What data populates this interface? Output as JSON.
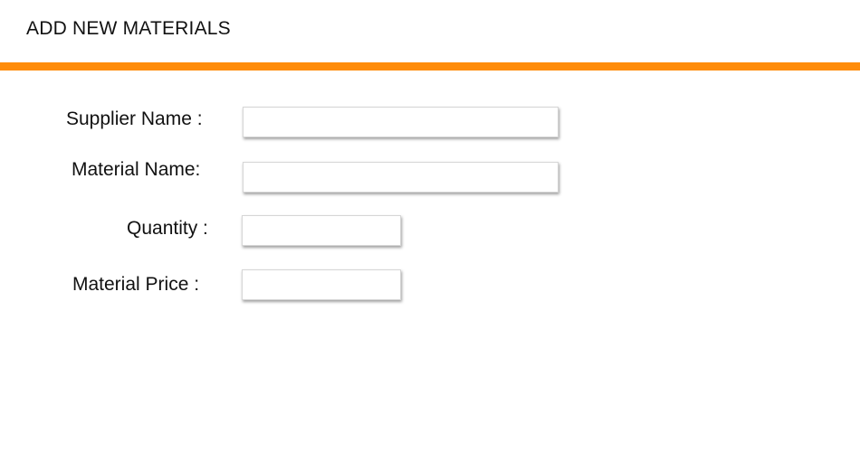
{
  "header": {
    "title": "ADD NEW MATERIALS",
    "accent_color": "#ff8c0a"
  },
  "form": {
    "fields": [
      {
        "label": "Supplier Name :",
        "value": "",
        "placeholder": ""
      },
      {
        "label": "Material Name:",
        "value": "",
        "placeholder": ""
      },
      {
        "label": "Quantity :",
        "value": "",
        "placeholder": ""
      },
      {
        "label": "Material Price :",
        "value": "",
        "placeholder": ""
      }
    ]
  }
}
